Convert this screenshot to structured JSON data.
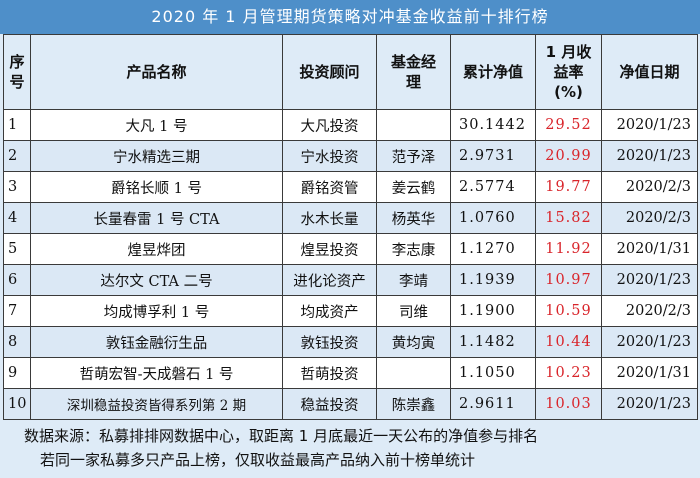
{
  "title": "2020 年 1 月管理期货策略对冲基金收益前十排行榜",
  "headers": {
    "seq": "序号",
    "product": "产品名称",
    "advisor": "投资顾问",
    "manager": "基金经理",
    "nav": "累计净值",
    "return": "1 月收益率 (%)",
    "date": "净值日期"
  },
  "rows": [
    {
      "seq": "1",
      "product": "大凡 1 号",
      "advisor": "大凡投资",
      "manager": "",
      "nav": "30.1442",
      "return": "29.52",
      "date": "2020/1/23"
    },
    {
      "seq": "2",
      "product": "宁水精选三期",
      "advisor": "宁水投资",
      "manager": "范予泽",
      "nav": "2.9731",
      "return": "20.99",
      "date": "2020/1/23"
    },
    {
      "seq": "3",
      "product": "爵铭长顺 1 号",
      "advisor": "爵铭资管",
      "manager": "姜云鹤",
      "nav": "2.5774",
      "return": "19.77",
      "date": "2020/2/3"
    },
    {
      "seq": "4",
      "product": "长量春雷 1 号 CTA",
      "advisor": "水木长量",
      "manager": "杨英华",
      "nav": "1.0760",
      "return": "15.82",
      "date": "2020/2/3"
    },
    {
      "seq": "5",
      "product": "煌昱烨团",
      "advisor": "煌昱投资",
      "manager": "李志康",
      "nav": "1.1270",
      "return": "11.92",
      "date": "2020/1/31"
    },
    {
      "seq": "6",
      "product": "达尔文 CTA 二号",
      "advisor": "进化论资产",
      "manager": "李靖",
      "nav": "1.1939",
      "return": "10.97",
      "date": "2020/1/23"
    },
    {
      "seq": "7",
      "product": "均成博孚利 1 号",
      "advisor": "均成资产",
      "manager": "司维",
      "nav": "1.1900",
      "return": "10.59",
      "date": "2020/2/3"
    },
    {
      "seq": "8",
      "product": "敦钰金融衍生品",
      "advisor": "敦钰投资",
      "manager": "黄均寅",
      "nav": "1.1482",
      "return": "10.44",
      "date": "2020/1/23"
    },
    {
      "seq": "9",
      "product": "哲萌宏智-天成磐石 1 号",
      "advisor": "哲萌投资",
      "manager": "",
      "nav": "1.1050",
      "return": "10.23",
      "date": "2020/1/31"
    },
    {
      "seq": "10",
      "product": "深圳稳益投资皆得系列第 2 期",
      "advisor": "稳益投资",
      "manager": "陈崇鑫",
      "nav": "2.9611",
      "return": "10.03",
      "date": "2020/1/23"
    }
  ],
  "notes": [
    "数据来源：私募排排网数据中心，取距离 1 月底最近一天公布的净值参与排名",
    "若同一家私募多只产品上榜，仅取收益最高产品纳入前十榜单统计"
  ]
}
